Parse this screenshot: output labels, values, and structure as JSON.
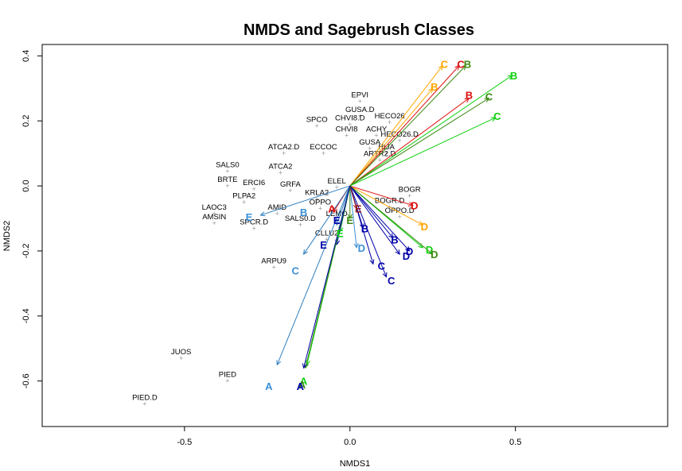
{
  "chart_data": {
    "type": "scatter",
    "title": "NMDS and Sagebrush Classes",
    "xlabel": "NMDS1",
    "ylabel": "NMDS2",
    "xlim": [
      -0.93,
      0.96
    ],
    "ylim": [
      -0.74,
      0.435
    ],
    "xticks": [
      -0.5,
      0,
      0.5
    ],
    "xtick_labels": [
      "-0.5",
      "0.0",
      "0.5"
    ],
    "yticks": [
      -0.6,
      -0.4,
      -0.2,
      0,
      0.2,
      0.4
    ],
    "ytick_labels": [
      "-0.6",
      "-0.4",
      "-0.2",
      "0.0",
      "0.2",
      "0.4"
    ],
    "grid": false,
    "colors": {
      "orange": "#FFA500",
      "darkorange": "#E07020",
      "red": "#DD1111",
      "darkred": "#9B1B1B",
      "green": "#11D011",
      "darkgreen": "#3A8A10",
      "blue": "#0000AA",
      "lightblue": "#3A8FD6",
      "steelblue": "#2F7FC0"
    },
    "species": [
      {
        "label": "EPVI",
        "x": 0.03,
        "y": 0.26
      },
      {
        "label": "GUSA.D",
        "x": 0.03,
        "y": 0.215
      },
      {
        "label": "SPCO",
        "x": -0.1,
        "y": 0.185
      },
      {
        "label": "CHVI8.D",
        "x": 0.0,
        "y": 0.19
      },
      {
        "label": "HECO26",
        "x": 0.12,
        "y": 0.195
      },
      {
        "label": "CHVI8",
        "x": -0.01,
        "y": 0.155
      },
      {
        "label": "ACHY",
        "x": 0.08,
        "y": 0.155
      },
      {
        "label": "HECO26.D",
        "x": 0.15,
        "y": 0.14
      },
      {
        "label": "GUSA",
        "x": 0.06,
        "y": 0.115
      },
      {
        "label": "HIJA",
        "x": 0.11,
        "y": 0.1
      },
      {
        "label": "ATCA2.D",
        "x": -0.2,
        "y": 0.1
      },
      {
        "label": "ECCOC",
        "x": -0.08,
        "y": 0.1
      },
      {
        "label": "ARTR2.D",
        "x": 0.09,
        "y": 0.08
      },
      {
        "label": "SALS0",
        "x": -0.37,
        "y": 0.045
      },
      {
        "label": "ATCA2",
        "x": -0.21,
        "y": 0.04
      },
      {
        "label": "BRTE",
        "x": -0.37,
        "y": 0.0
      },
      {
        "label": "ERCI6",
        "x": -0.29,
        "y": -0.01
      },
      {
        "label": "GRFA",
        "x": -0.18,
        "y": -0.015
      },
      {
        "label": "ELEL",
        "x": -0.04,
        "y": -0.005
      },
      {
        "label": "BOGR",
        "x": 0.18,
        "y": -0.03
      },
      {
        "label": "KRLA2",
        "x": -0.1,
        "y": -0.04
      },
      {
        "label": "PLPA2",
        "x": -0.32,
        "y": -0.05
      },
      {
        "label": "OPPO",
        "x": -0.09,
        "y": -0.07
      },
      {
        "label": "BOGR.D",
        "x": 0.12,
        "y": -0.065
      },
      {
        "label": "AMID",
        "x": -0.22,
        "y": -0.085
      },
      {
        "label": "LAOC3",
        "x": -0.41,
        "y": -0.085
      },
      {
        "label": "OPPO.D",
        "x": 0.15,
        "y": -0.095
      },
      {
        "label": "LEMO",
        "x": -0.04,
        "y": -0.105
      },
      {
        "label": "AMSIN",
        "x": -0.41,
        "y": -0.115
      },
      {
        "label": "SPCR.D",
        "x": -0.29,
        "y": -0.13
      },
      {
        "label": "SALS0.D",
        "x": -0.15,
        "y": -0.12
      },
      {
        "label": "CLLU2",
        "x": -0.07,
        "y": -0.165
      },
      {
        "label": "ARPU9",
        "x": -0.23,
        "y": -0.25
      },
      {
        "label": "JUOS",
        "x": -0.51,
        "y": -0.53
      },
      {
        "label": "PIED",
        "x": -0.37,
        "y": -0.6
      },
      {
        "label": "PIED.D",
        "x": -0.62,
        "y": -0.67
      }
    ],
    "vectors": [
      {
        "label": "C",
        "color": "orange",
        "x": 0.28,
        "y": 0.37
      },
      {
        "label": "B",
        "color": "orange",
        "x": 0.25,
        "y": 0.3
      },
      {
        "label": "C",
        "color": "red",
        "x": 0.33,
        "y": 0.37
      },
      {
        "label": "B",
        "color": "darkgreen",
        "x": 0.35,
        "y": 0.37
      },
      {
        "label": "B",
        "color": "red",
        "x": 0.36,
        "y": 0.27
      },
      {
        "label": "B",
        "color": "green",
        "x": 0.49,
        "y": 0.34
      },
      {
        "label": "C",
        "color": "darkgreen",
        "x": 0.42,
        "y": 0.27
      },
      {
        "label": "C",
        "color": "green",
        "x": 0.44,
        "y": 0.21
      },
      {
        "label": "D",
        "color": "red",
        "x": 0.19,
        "y": -0.06
      },
      {
        "label": "D",
        "color": "orange",
        "x": 0.22,
        "y": -0.12
      },
      {
        "label": "D",
        "color": "green",
        "x": 0.22,
        "y": -0.19
      },
      {
        "label": "D",
        "color": "darkgreen",
        "x": 0.25,
        "y": -0.21
      },
      {
        "label": "D",
        "color": "blue",
        "x": 0.18,
        "y": -0.2
      },
      {
        "label": "D",
        "color": "blue",
        "x": 0.15,
        "y": -0.21
      },
      {
        "label": "B",
        "color": "blue",
        "x": 0.13,
        "y": -0.16
      },
      {
        "label": "B",
        "color": "blue",
        "x": 0.04,
        "y": -0.13
      },
      {
        "label": "D",
        "color": "lightblue",
        "x": 0.02,
        "y": -0.19
      },
      {
        "label": "C",
        "color": "blue",
        "x": 0.07,
        "y": -0.24
      },
      {
        "label": "C",
        "color": "blue",
        "x": 0.11,
        "y": -0.28
      },
      {
        "label": "E",
        "color": "darkred",
        "x": 0.02,
        "y": -0.07
      },
      {
        "label": "E",
        "color": "darkgreen",
        "x": 0.0,
        "y": -0.1
      },
      {
        "label": "E",
        "color": "green",
        "x": -0.03,
        "y": -0.14
      },
      {
        "label": "E",
        "color": "blue",
        "x": -0.04,
        "y": -0.18
      },
      {
        "label": "E",
        "color": "steelblue",
        "x": -0.04,
        "y": -0.12
      },
      {
        "label": "A",
        "color": "red",
        "x": -0.05,
        "y": -0.08
      },
      {
        "label": "E",
        "color": "steelblue",
        "x": -0.27,
        "y": -0.09
      },
      {
        "label": "C",
        "color": "steelblue",
        "x": -0.14,
        "y": -0.21
      },
      {
        "label": "A",
        "color": "steelblue",
        "x": -0.22,
        "y": -0.55
      },
      {
        "label": "A",
        "color": "green",
        "x": -0.13,
        "y": -0.55
      },
      {
        "label": "A",
        "color": "darkgreen",
        "x": -0.135,
        "y": -0.56
      },
      {
        "label": "A",
        "color": "blue",
        "x": -0.14,
        "y": -0.56
      }
    ],
    "class_labels": [
      {
        "label": "C",
        "color": "orange",
        "x": 0.285,
        "y": 0.375
      },
      {
        "label": "C",
        "color": "red",
        "x": 0.335,
        "y": 0.375
      },
      {
        "label": "B",
        "color": "darkgreen",
        "x": 0.355,
        "y": 0.375
      },
      {
        "label": "B",
        "color": "orange",
        "x": 0.255,
        "y": 0.305
      },
      {
        "label": "B",
        "color": "green",
        "x": 0.495,
        "y": 0.34
      },
      {
        "label": "B",
        "color": "red",
        "x": 0.36,
        "y": 0.28
      },
      {
        "label": "C",
        "color": "darkgreen",
        "x": 0.42,
        "y": 0.275
      },
      {
        "label": "C",
        "color": "green",
        "x": 0.445,
        "y": 0.215
      },
      {
        "label": "D",
        "color": "red",
        "x": 0.195,
        "y": -0.06
      },
      {
        "label": "A",
        "color": "red",
        "x": -0.055,
        "y": -0.07
      },
      {
        "label": "E",
        "color": "darkred",
        "x": 0.025,
        "y": -0.07
      },
      {
        "label": "B",
        "color": "lightblue",
        "x": -0.14,
        "y": -0.08
      },
      {
        "label": "E",
        "color": "lightblue",
        "x": -0.305,
        "y": -0.095
      },
      {
        "label": "E",
        "color": "blue",
        "x": -0.04,
        "y": -0.105
      },
      {
        "label": "E",
        "color": "darkgreen",
        "x": 0.0,
        "y": -0.105
      },
      {
        "label": "D",
        "color": "orange",
        "x": 0.225,
        "y": -0.125
      },
      {
        "label": "B",
        "color": "blue",
        "x": 0.045,
        "y": -0.13
      },
      {
        "label": "E",
        "color": "green",
        "x": -0.03,
        "y": -0.145
      },
      {
        "label": "B",
        "color": "blue",
        "x": 0.135,
        "y": -0.165
      },
      {
        "label": "E",
        "color": "blue",
        "x": -0.08,
        "y": -0.18
      },
      {
        "label": "D",
        "color": "lightblue",
        "x": 0.035,
        "y": -0.19
      },
      {
        "label": "D",
        "color": "green",
        "x": 0.24,
        "y": -0.195
      },
      {
        "label": "D",
        "color": "blue",
        "x": 0.18,
        "y": -0.2
      },
      {
        "label": "D",
        "color": "darkgreen",
        "x": 0.255,
        "y": -0.21
      },
      {
        "label": "D",
        "color": "blue",
        "x": 0.17,
        "y": -0.215
      },
      {
        "label": "C",
        "color": "blue",
        "x": 0.095,
        "y": -0.245
      },
      {
        "label": "C",
        "color": "lightblue",
        "x": -0.165,
        "y": -0.26
      },
      {
        "label": "C",
        "color": "blue",
        "x": 0.125,
        "y": -0.29
      },
      {
        "label": "A",
        "color": "green",
        "x": -0.14,
        "y": -0.6
      },
      {
        "label": "A",
        "color": "darkgreen",
        "x": -0.145,
        "y": -0.61
      },
      {
        "label": "A",
        "color": "blue",
        "x": -0.15,
        "y": -0.615
      },
      {
        "label": "A",
        "color": "lightblue",
        "x": -0.245,
        "y": -0.615
      }
    ]
  }
}
